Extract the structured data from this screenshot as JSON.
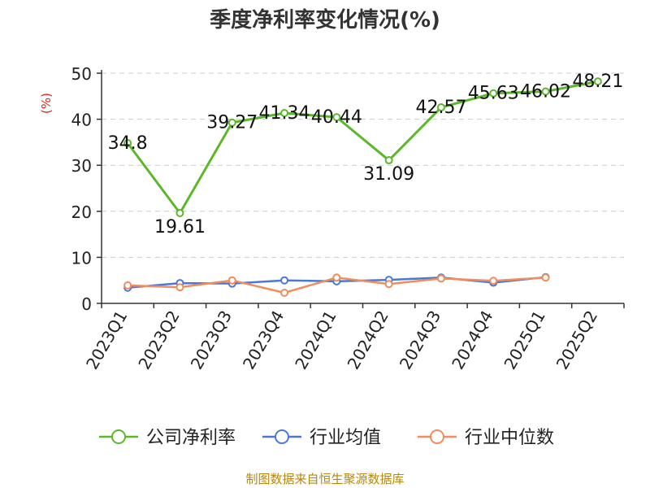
{
  "chart_data": {
    "type": "line",
    "title": "季度净利率变化情况(%)",
    "ylabel": "(%)",
    "ylim": [
      0,
      50
    ],
    "yticks": [
      0,
      10,
      20,
      30,
      40,
      50
    ],
    "categories": [
      "2023Q1",
      "2023Q2",
      "2023Q3",
      "2023Q4",
      "2024Q1",
      "2024Q2",
      "2024Q3",
      "2024Q4",
      "2025Q1",
      "2025Q2"
    ],
    "grid": true,
    "legend_position": "bottom",
    "series": [
      {
        "name": "公司净利率",
        "color": "#5cb82a",
        "values": [
          34.8,
          19.61,
          39.27,
          41.34,
          40.44,
          31.09,
          42.57,
          45.63,
          46.02,
          48.21
        ],
        "labels": [
          "34.8",
          "19.61",
          "39.27",
          "41.34",
          "40.44",
          "31.09",
          "42.57",
          "45.63",
          "46.02",
          "48.21"
        ]
      },
      {
        "name": "行业均值",
        "color": "#4a78d6",
        "values": [
          3.4,
          4.4,
          4.3,
          5.0,
          4.8,
          5.1,
          5.6,
          4.5,
          5.7,
          null
        ]
      },
      {
        "name": "行业中位数",
        "color": "#f28c5a",
        "values": [
          3.9,
          3.5,
          5.0,
          2.3,
          5.6,
          4.2,
          5.4,
          4.9,
          5.6,
          null
        ]
      }
    ]
  },
  "source": "制图数据来自恒生聚源数据库"
}
